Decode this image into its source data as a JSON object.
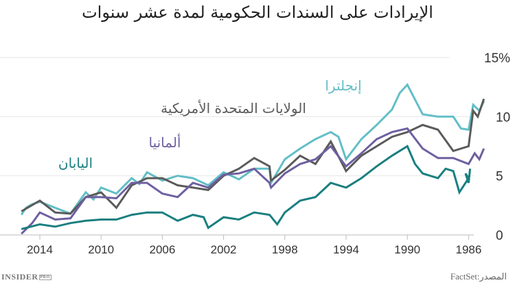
{
  "title": "الإيرادات على السندات الحكومية لمدة عشر سنوات",
  "source": "المصدر:FactSet",
  "logo": {
    "text": "INSIDER",
    "badge": "PRO"
  },
  "chart_data": {
    "type": "line",
    "title": "الإيرادات على السندات الحكومية لمدة عشر سنوات",
    "xlabel": "",
    "ylabel": "",
    "x_reversed": true,
    "xlim": [
      2015.3,
      1985
    ],
    "ylim": [
      0,
      15
    ],
    "x_ticks": [
      "2014",
      "2010",
      "2006",
      "2002",
      "1998",
      "1994",
      "1990",
      "1986"
    ],
    "x_tick_values": [
      2014,
      2010,
      2006,
      2002,
      1998,
      1994,
      1990,
      1986
    ],
    "y_ticks": [
      "0",
      "5",
      "10",
      "15%"
    ],
    "y_tick_values": [
      0,
      5,
      10,
      15
    ],
    "grid": true,
    "y_axis_side": "right",
    "series": [
      {
        "name": "إنجلترا",
        "color": "#62bec6",
        "points": [
          [
            2015.2,
            1.7
          ],
          [
            2014.9,
            2.3
          ],
          [
            2014.5,
            2.6
          ],
          [
            2014,
            2.8
          ],
          [
            2013,
            2.3
          ],
          [
            2012,
            1.8
          ],
          [
            2011,
            3.6
          ],
          [
            2010.5,
            3.0
          ],
          [
            2010,
            4.0
          ],
          [
            2009,
            3.5
          ],
          [
            2008,
            4.8
          ],
          [
            2007.5,
            4.3
          ],
          [
            2007,
            5.3
          ],
          [
            2006,
            4.6
          ],
          [
            2005,
            5.0
          ],
          [
            2004,
            4.8
          ],
          [
            2003,
            4.2
          ],
          [
            2002,
            5.3
          ],
          [
            2001,
            4.7
          ],
          [
            2000,
            5.6
          ],
          [
            1999,
            5.6
          ],
          [
            1998.9,
            4.4
          ],
          [
            1998,
            6.4
          ],
          [
            1997,
            7.3
          ],
          [
            1996,
            8.1
          ],
          [
            1995,
            8.7
          ],
          [
            1994.5,
            8.3
          ],
          [
            1994,
            6.4
          ],
          [
            1993,
            8.1
          ],
          [
            1992,
            9.3
          ],
          [
            1991,
            10.6
          ],
          [
            1990.5,
            12.0
          ],
          [
            1990,
            12.7
          ],
          [
            1989,
            10.2
          ],
          [
            1988,
            10.0
          ],
          [
            1987,
            10.0
          ],
          [
            1986.5,
            9.0
          ],
          [
            1986,
            8.9
          ],
          [
            1985.7,
            11.0
          ],
          [
            1985.3,
            10.5
          ],
          [
            1985,
            11.3
          ]
        ]
      },
      {
        "name": "الولايات المتحدة الأمريكية",
        "color": "#5a5a5a",
        "points": [
          [
            2015.2,
            2.0
          ],
          [
            2014,
            2.9
          ],
          [
            2013,
            1.9
          ],
          [
            2012,
            1.8
          ],
          [
            2011,
            3.2
          ],
          [
            2010,
            3.6
          ],
          [
            2009,
            2.3
          ],
          [
            2008,
            4.2
          ],
          [
            2007,
            4.8
          ],
          [
            2006,
            4.8
          ],
          [
            2005,
            4.2
          ],
          [
            2004,
            4.0
          ],
          [
            2003,
            3.8
          ],
          [
            2002,
            5.0
          ],
          [
            2001,
            5.6
          ],
          [
            2000,
            6.5
          ],
          [
            1999,
            5.8
          ],
          [
            1998.9,
            4.6
          ],
          [
            1998,
            5.5
          ],
          [
            1997,
            6.7
          ],
          [
            1996,
            6.0
          ],
          [
            1995,
            7.9
          ],
          [
            1994,
            5.4
          ],
          [
            1993,
            6.7
          ],
          [
            1992,
            7.5
          ],
          [
            1991,
            8.3
          ],
          [
            1990,
            8.7
          ],
          [
            1989,
            9.3
          ],
          [
            1988,
            8.9
          ],
          [
            1987,
            7.1
          ],
          [
            1986,
            7.5
          ],
          [
            1985.7,
            10.5
          ],
          [
            1985.4,
            10.0
          ],
          [
            1985,
            11.5
          ]
        ]
      },
      {
        "name": "ألمانيا",
        "color": "#6e5fa0",
        "points": [
          [
            2015.2,
            0.1
          ],
          [
            2014.5,
            1.0
          ],
          [
            2014,
            1.9
          ],
          [
            2013,
            1.3
          ],
          [
            2012,
            1.4
          ],
          [
            2011,
            3.2
          ],
          [
            2010,
            3.2
          ],
          [
            2009,
            3.1
          ],
          [
            2008,
            4.4
          ],
          [
            2007,
            4.4
          ],
          [
            2006,
            3.5
          ],
          [
            2005,
            3.2
          ],
          [
            2004,
            4.4
          ],
          [
            2003,
            4.0
          ],
          [
            2002,
            5.1
          ],
          [
            2001,
            5.2
          ],
          [
            2000,
            5.6
          ],
          [
            1999,
            4.4
          ],
          [
            1998.9,
            4.0
          ],
          [
            1998,
            5.2
          ],
          [
            1997,
            6.0
          ],
          [
            1996,
            6.4
          ],
          [
            1995,
            7.5
          ],
          [
            1994,
            5.8
          ],
          [
            1993,
            6.9
          ],
          [
            1992,
            8.1
          ],
          [
            1991,
            8.7
          ],
          [
            1990,
            9.0
          ],
          [
            1989,
            7.3
          ],
          [
            1988,
            6.5
          ],
          [
            1987,
            6.5
          ],
          [
            1986,
            6.0
          ],
          [
            1985.6,
            6.9
          ],
          [
            1985.3,
            6.4
          ],
          [
            1985,
            7.3
          ]
        ]
      },
      {
        "name": "اليابان",
        "color": "#1a7f80",
        "points": [
          [
            2015.2,
            0.5
          ],
          [
            2014,
            0.9
          ],
          [
            2013,
            0.7
          ],
          [
            2012,
            1.0
          ],
          [
            2011,
            1.2
          ],
          [
            2010,
            1.3
          ],
          [
            2009,
            1.3
          ],
          [
            2008,
            1.7
          ],
          [
            2007,
            1.9
          ],
          [
            2006,
            1.9
          ],
          [
            2005,
            1.2
          ],
          [
            2004,
            1.7
          ],
          [
            2003.3,
            1.5
          ],
          [
            2003,
            0.6
          ],
          [
            2002,
            1.5
          ],
          [
            2001,
            1.3
          ],
          [
            2000,
            1.9
          ],
          [
            1999,
            1.7
          ],
          [
            1998.5,
            0.9
          ],
          [
            1998,
            1.9
          ],
          [
            1997,
            2.9
          ],
          [
            1996,
            3.2
          ],
          [
            1995,
            4.4
          ],
          [
            1994,
            4.0
          ],
          [
            1993,
            4.8
          ],
          [
            1992,
            5.8
          ],
          [
            1991,
            6.7
          ],
          [
            1990,
            7.5
          ],
          [
            1989.5,
            6.0
          ],
          [
            1989,
            5.2
          ],
          [
            1988,
            4.8
          ],
          [
            1987.5,
            5.6
          ],
          [
            1987,
            5.4
          ],
          [
            1986.6,
            3.6
          ],
          [
            1986,
            4.8
          ],
          [
            1986.2,
            5.2
          ],
          [
            1986,
            4.4
          ],
          [
            1985.9,
            5.6
          ]
        ]
      }
    ]
  }
}
